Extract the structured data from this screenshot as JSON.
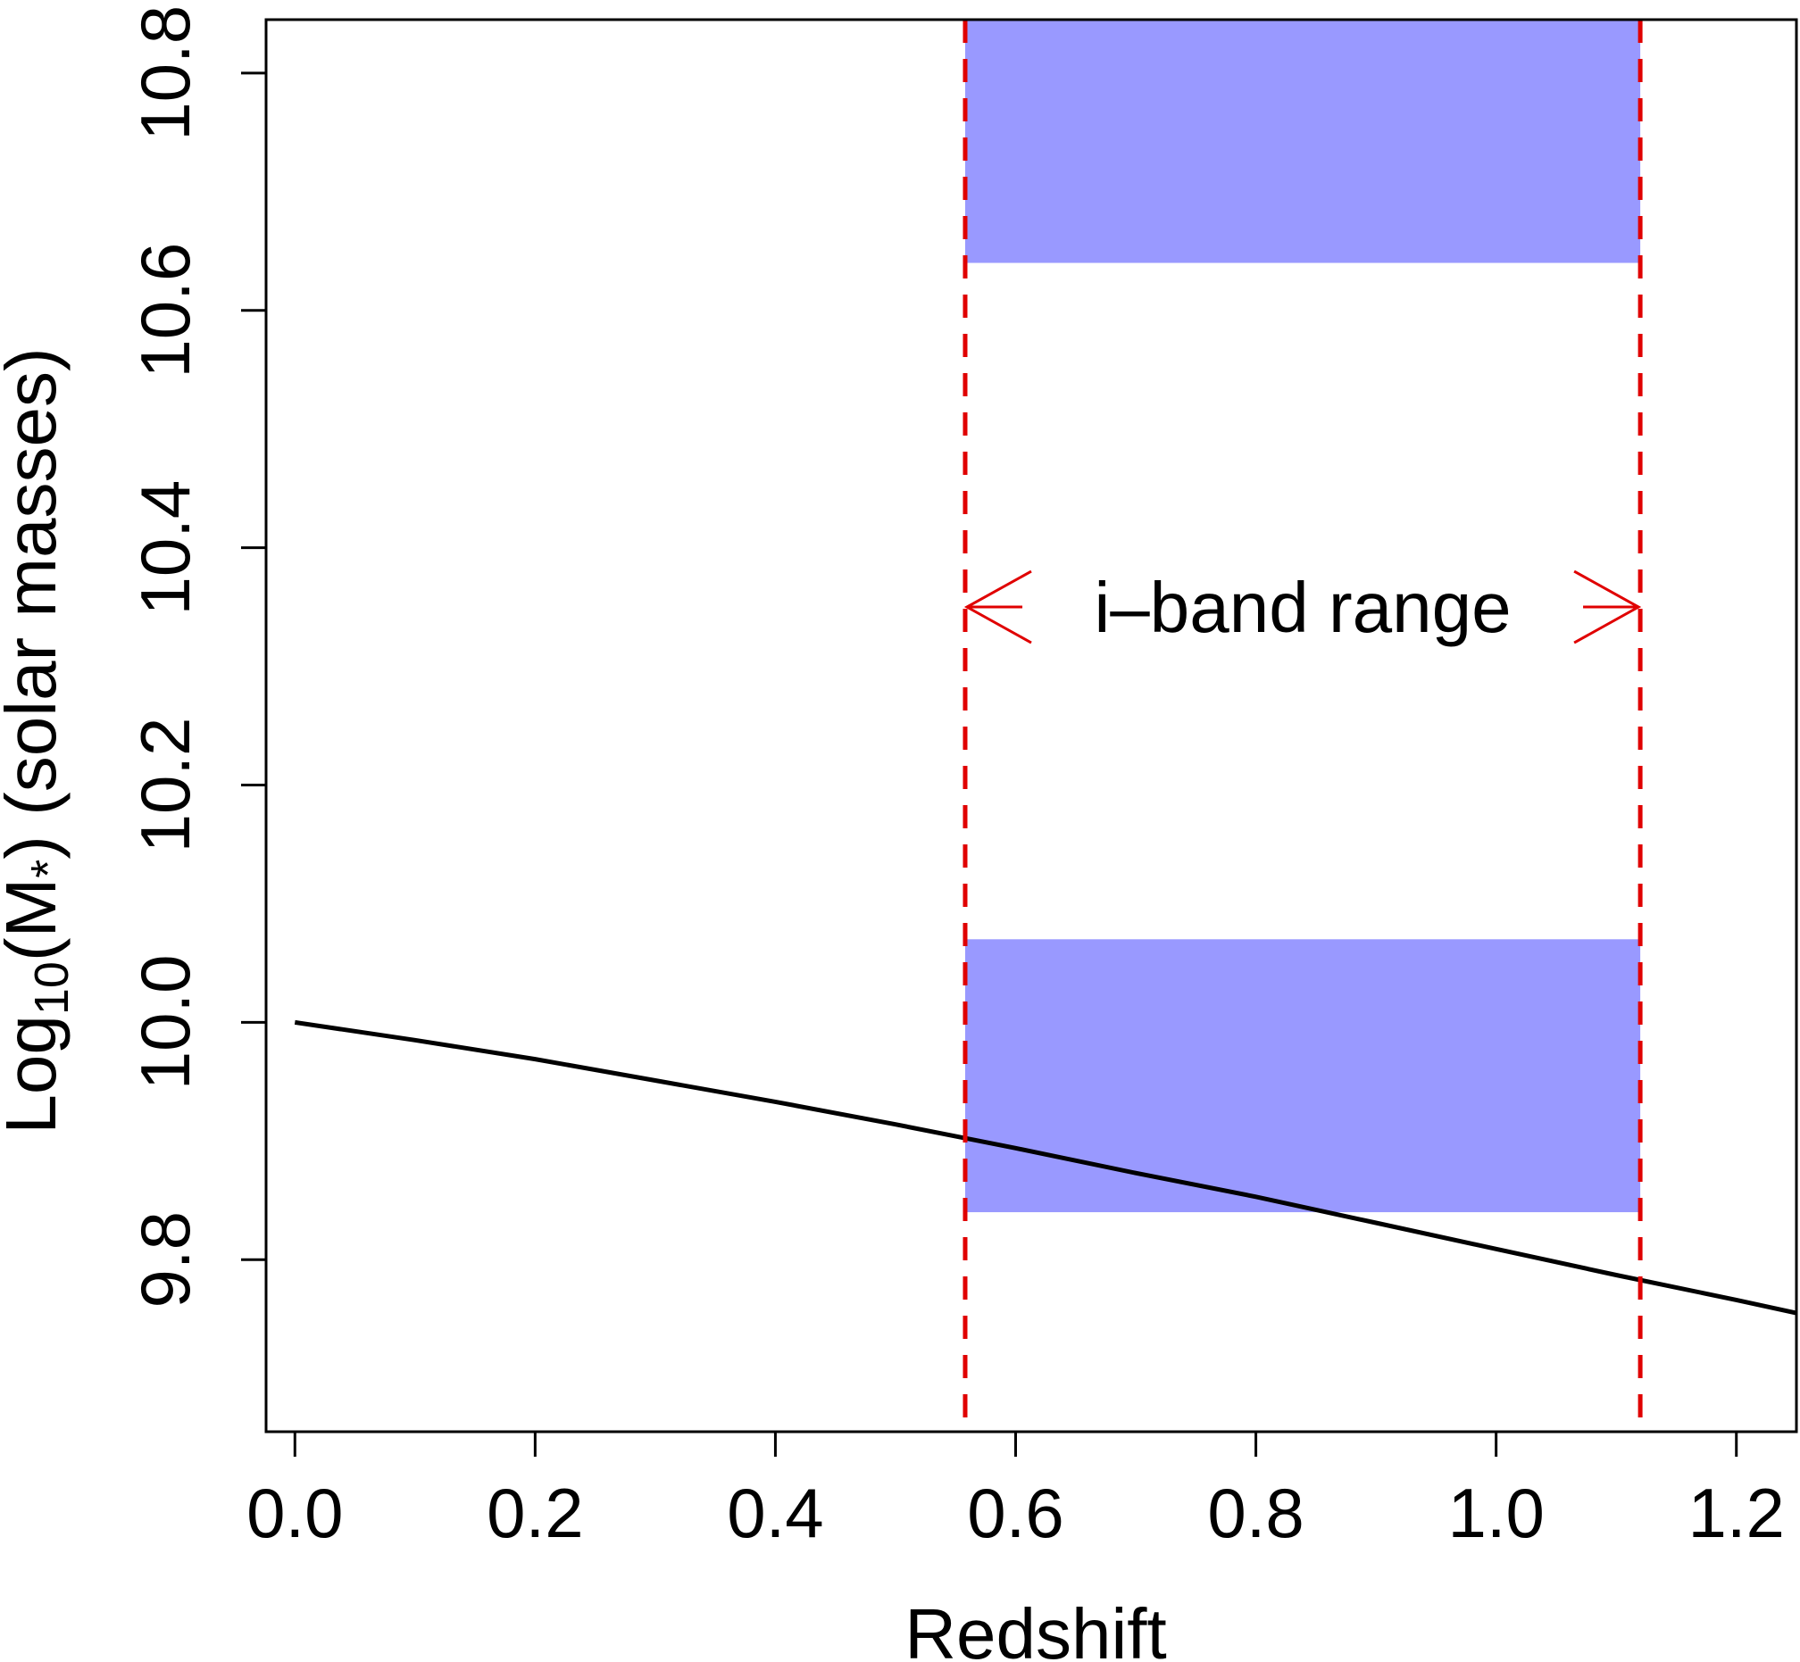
{
  "chart_data": {
    "type": "line",
    "xlabel": "Redshift",
    "ylabel": {
      "prefix": "Log",
      "sub": "10",
      "open": "(M",
      "star": "*",
      "rest": ")  (solar masses)"
    },
    "xlim": [
      -0.024,
      1.25
    ],
    "ylim": [
      9.655,
      10.845
    ],
    "x_ticks": [
      "0.0",
      "0.2",
      "0.4",
      "0.6",
      "0.8",
      "1.0",
      "1.2"
    ],
    "x_tick_values": [
      0.0,
      0.2,
      0.4,
      0.6,
      0.8,
      1.0,
      1.2
    ],
    "y_ticks": [
      "9.8",
      "10.0",
      "10.2",
      "10.4",
      "10.6",
      "10.8"
    ],
    "y_tick_values": [
      9.8,
      10.0,
      10.2,
      10.4,
      10.6,
      10.8
    ],
    "grid": false,
    "series": [
      {
        "color": "#000000",
        "x": [
          0.0,
          0.1,
          0.2,
          0.3,
          0.4,
          0.5,
          0.6,
          0.7,
          0.8,
          0.9,
          1.0,
          1.1,
          1.2,
          1.25
        ],
        "y": [
          10.0,
          9.985,
          9.969,
          9.951,
          9.933,
          9.914,
          9.894,
          9.873,
          9.853,
          9.831,
          9.809,
          9.787,
          9.766,
          9.755
        ]
      }
    ],
    "shaded_regions": [
      {
        "x": [
          0.558,
          1.12
        ],
        "y": [
          10.64,
          10.845
        ],
        "color": "#9999ff"
      },
      {
        "x": [
          0.558,
          1.12
        ],
        "y": [
          9.84,
          10.07
        ],
        "color": "#9999ff"
      }
    ],
    "vlines": [
      {
        "x": 0.558,
        "color": "#e00000",
        "style": "dashed"
      },
      {
        "x": 1.12,
        "color": "#e00000",
        "style": "dashed"
      }
    ],
    "annotation": {
      "text": "i–band range",
      "y": 10.35,
      "x_range": [
        0.558,
        1.12
      ],
      "arrow_color": "#e00000"
    }
  }
}
